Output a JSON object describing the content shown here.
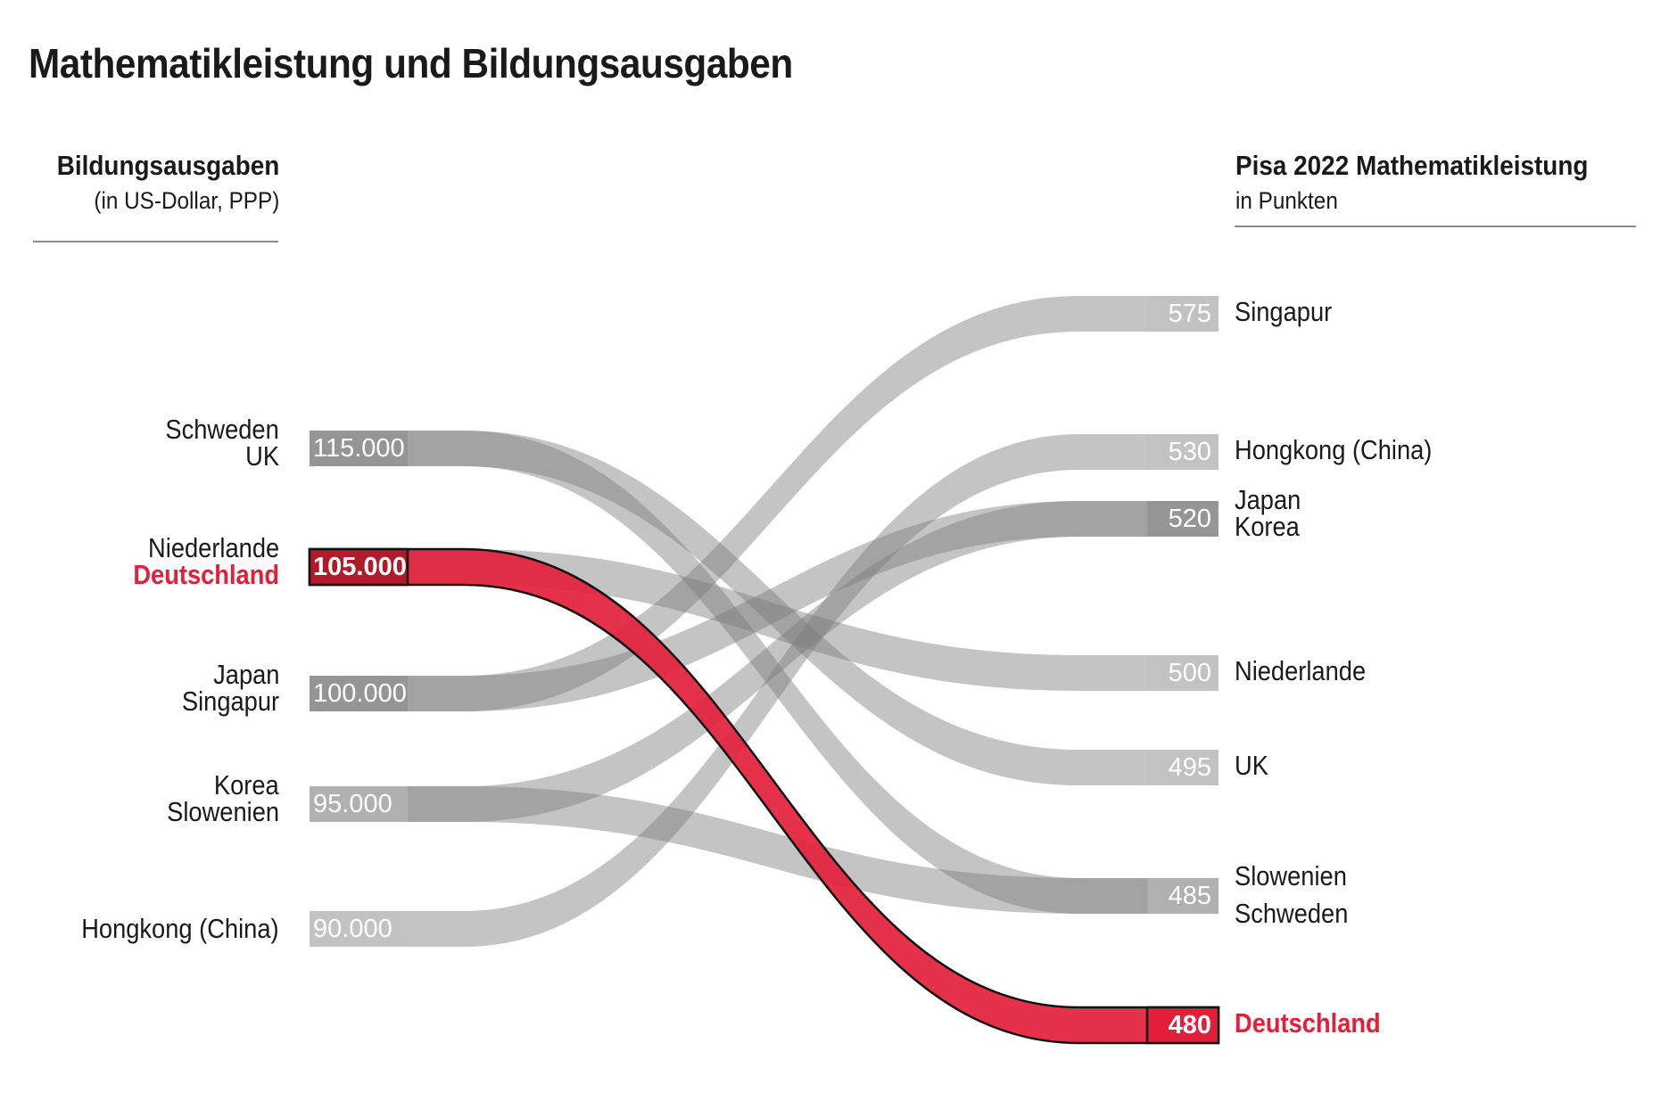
{
  "title": "Mathematikleistung und Bildungsausgaben",
  "left_header": {
    "title": "Bildungsausgaben",
    "subtitle": "(in US-Dollar, PPP)"
  },
  "right_header": {
    "title": "Pisa 2022 Mathematikleistung",
    "subtitle": "in Punkten"
  },
  "colors": {
    "highlight": "#e31f3a",
    "highlight_dark": "#b01a2b",
    "gray_light": "#c2c2c2",
    "gray_mid": "#b0b0b0",
    "gray_dark": "#959595"
  },
  "chart_data": {
    "type": "slope",
    "title": "Mathematikleistung und Bildungsausgaben",
    "left_axis": {
      "label": "Bildungsausgaben",
      "unit": "(in US-Dollar, PPP)"
    },
    "right_axis": {
      "label": "Pisa 2022 Mathematikleistung",
      "unit": "in Punkten"
    },
    "left_nodes": [
      {
        "value": 115000,
        "value_label": "115.000",
        "labels": [
          "Schweden",
          "UK"
        ],
        "shade": "dark"
      },
      {
        "value": 105000,
        "value_label": "105.000",
        "labels": [
          "Niederlande",
          "Deutschland"
        ],
        "shade": "highlight"
      },
      {
        "value": 100000,
        "value_label": "100.000",
        "labels": [
          "Japan",
          "Singapur"
        ],
        "shade": "dark"
      },
      {
        "value": 95000,
        "value_label": "95.000",
        "labels": [
          "Korea",
          "Slowenien"
        ],
        "shade": "mid"
      },
      {
        "value": 90000,
        "value_label": "90.000",
        "labels": [
          "Hongkong (China)"
        ],
        "shade": "light"
      }
    ],
    "right_nodes": [
      {
        "value": 575,
        "value_label": "575",
        "labels": [
          "Singapur"
        ],
        "shade": "light"
      },
      {
        "value": 530,
        "value_label": "530",
        "labels": [
          "Hongkong (China)"
        ],
        "shade": "light"
      },
      {
        "value": 520,
        "value_label": "520",
        "labels": [
          "Japan",
          "Korea"
        ],
        "shade": "dark"
      },
      {
        "value": 500,
        "value_label": "500",
        "labels": [
          "Niederlande"
        ],
        "shade": "light"
      },
      {
        "value": 495,
        "value_label": "495",
        "labels": [
          "UK"
        ],
        "shade": "light"
      },
      {
        "value": 485,
        "value_label": "485",
        "labels": [
          "Slowenien",
          "Schweden"
        ],
        "shade": "mid"
      },
      {
        "value": 480,
        "value_label": "480",
        "labels": [
          "Deutschland"
        ],
        "shade": "highlight"
      }
    ],
    "flows": [
      {
        "country": "Schweden",
        "spending": 115000,
        "pisa": 485,
        "highlight": false
      },
      {
        "country": "UK",
        "spending": 115000,
        "pisa": 495,
        "highlight": false
      },
      {
        "country": "Niederlande",
        "spending": 105000,
        "pisa": 500,
        "highlight": false
      },
      {
        "country": "Japan",
        "spending": 100000,
        "pisa": 520,
        "highlight": false
      },
      {
        "country": "Singapur",
        "spending": 100000,
        "pisa": 575,
        "highlight": false
      },
      {
        "country": "Korea",
        "spending": 95000,
        "pisa": 520,
        "highlight": false
      },
      {
        "country": "Slowenien",
        "spending": 95000,
        "pisa": 485,
        "highlight": false
      },
      {
        "country": "Hongkong (China)",
        "spending": 90000,
        "pisa": 530,
        "highlight": false
      },
      {
        "country": "Deutschland",
        "spending": 105000,
        "pisa": 480,
        "highlight": true
      }
    ]
  }
}
